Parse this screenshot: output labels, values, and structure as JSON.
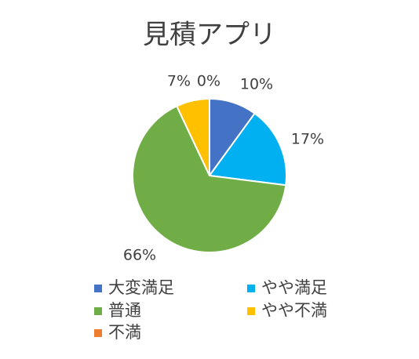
{
  "chart_data": {
    "type": "pie",
    "title": "見積アプリ",
    "categories": [
      "大変満足",
      "やや満足",
      "普通",
      "やや不満",
      "不満"
    ],
    "values": [
      10,
      17,
      66,
      7,
      0
    ],
    "value_labels": [
      "10%",
      "17%",
      "66%",
      "7%",
      "0%"
    ],
    "colors": [
      "#4472c4",
      "#00b0f0",
      "#70ad47",
      "#ffc000",
      "#ed7d31"
    ],
    "legend": "bottom"
  }
}
